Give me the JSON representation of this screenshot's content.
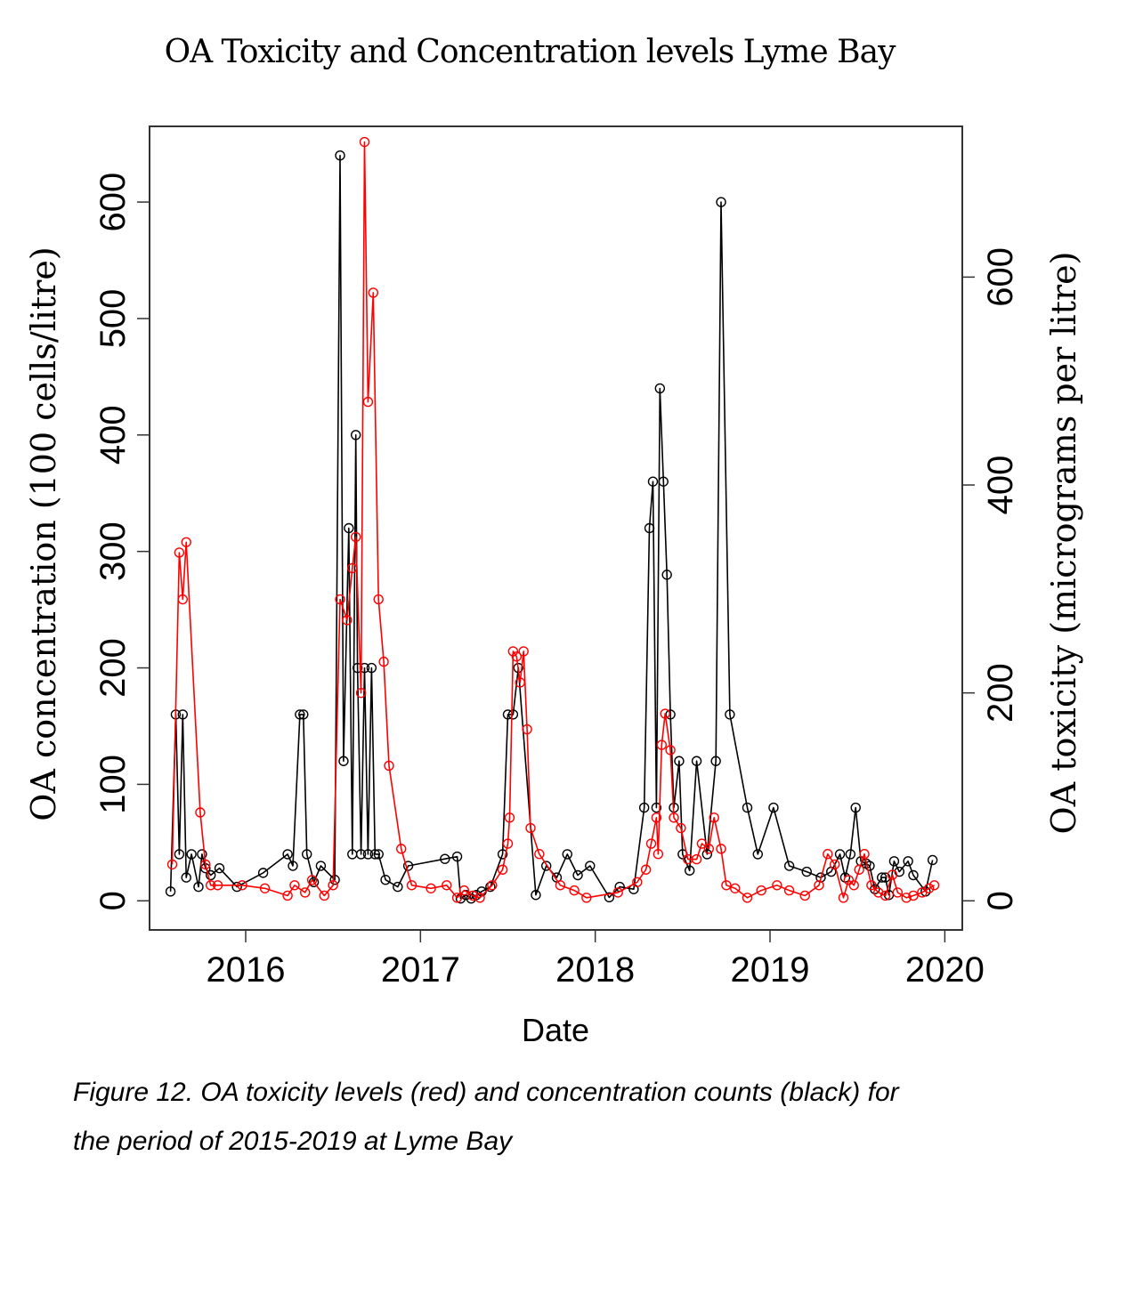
{
  "figure": {
    "title": "OA Toxicity and Concentration levels Lyme Bay",
    "caption_line1": "Figure 12. OA toxicity levels (red) and concentration counts (black) for",
    "caption_line2": "the period of 2015-2019 at Lyme Bay"
  },
  "chart_data": {
    "type": "line",
    "title": "OA Toxicity and Concentration levels Lyme Bay",
    "xlabel": "Date",
    "ylabel_left": "OA concentration (100 cells/litre)",
    "ylabel_right": "OA toxicity (micrograms per litre)",
    "xlim": [
      2015.45,
      2020.1
    ],
    "ylim_left": [
      -25,
      665
    ],
    "ylim_right": [
      -28,
      745
    ],
    "x_ticks": [
      2016,
      2017,
      2018,
      2019,
      2020
    ],
    "x_tick_labels": [
      "2016",
      "2017",
      "2018",
      "2019",
      "2020"
    ],
    "y_left_ticks": [
      0,
      100,
      200,
      300,
      400,
      500,
      600
    ],
    "y_left_tick_labels": [
      "0",
      "100",
      "200",
      "300",
      "400",
      "500",
      "600"
    ],
    "y_right_ticks": [
      0,
      200,
      400,
      600
    ],
    "y_right_tick_labels": [
      "0",
      "200",
      "400",
      "600"
    ],
    "grid": false,
    "legend": "none",
    "series": [
      {
        "name": "OA concentration counts",
        "axis": "left",
        "color": "#000000",
        "marker": "open-circle",
        "x": [
          2015.57,
          2015.6,
          2015.62,
          2015.64,
          2015.66,
          2015.69,
          2015.73,
          2015.75,
          2015.77,
          2015.8,
          2015.85,
          2015.95,
          2016.1,
          2016.24,
          2016.27,
          2016.31,
          2016.33,
          2016.35,
          2016.39,
          2016.43,
          2016.51,
          2016.54,
          2016.56,
          2016.59,
          2016.61,
          2016.63,
          2016.64,
          2016.66,
          2016.68,
          2016.7,
          2016.72,
          2016.74,
          2016.76,
          2016.8,
          2016.87,
          2016.93,
          2017.14,
          2017.21,
          2017.23,
          2017.26,
          2017.29,
          2017.32,
          2017.35,
          2017.4,
          2017.47,
          2017.5,
          2017.53,
          2017.56,
          2017.66,
          2017.72,
          2017.78,
          2017.84,
          2017.9,
          2017.97,
          2018.08,
          2018.14,
          2018.22,
          2018.28,
          2018.31,
          2018.33,
          2018.35,
          2018.37,
          2018.39,
          2018.41,
          2018.43,
          2018.45,
          2018.48,
          2018.5,
          2018.54,
          2018.58,
          2018.64,
          2018.69,
          2018.72,
          2018.77,
          2018.87,
          2018.93,
          2019.02,
          2019.11,
          2019.21,
          2019.29,
          2019.35,
          2019.4,
          2019.43,
          2019.46,
          2019.49,
          2019.52,
          2019.55,
          2019.57,
          2019.6,
          2019.64,
          2019.66,
          2019.68,
          2019.71,
          2019.74,
          2019.79,
          2019.82,
          2019.89,
          2019.93
        ],
        "y": [
          8,
          160,
          40,
          160,
          20,
          40,
          12,
          40,
          28,
          22,
          28,
          12,
          24,
          40,
          30,
          160,
          160,
          40,
          16,
          30,
          18,
          640,
          120,
          320,
          40,
          400,
          200,
          40,
          200,
          40,
          200,
          40,
          40,
          18,
          12,
          30,
          36,
          38,
          2,
          5,
          2,
          5,
          8,
          12,
          40,
          160,
          160,
          200,
          5,
          30,
          20,
          40,
          22,
          30,
          3,
          12,
          10,
          80,
          320,
          360,
          80,
          440,
          360,
          280,
          160,
          80,
          120,
          40,
          26,
          120,
          40,
          120,
          600,
          160,
          80,
          40,
          80,
          30,
          25,
          20,
          25,
          40,
          20,
          40,
          80,
          34,
          32,
          30,
          10,
          20,
          20,
          5,
          34,
          25,
          34,
          22,
          8,
          35
        ],
        "values_note": "read from left axis (100 cells/litre)"
      },
      {
        "name": "OA toxicity levels",
        "axis": "right",
        "color": "#ff0000",
        "marker": "open-circle",
        "x": [
          2015.58,
          2015.62,
          2015.64,
          2015.66,
          2015.74,
          2015.77,
          2015.8,
          2015.84,
          2015.98,
          2016.11,
          2016.24,
          2016.28,
          2016.34,
          2016.38,
          2016.45,
          2016.5,
          2016.54,
          2016.58,
          2016.61,
          2016.63,
          2016.66,
          2016.68,
          2016.7,
          2016.73,
          2016.76,
          2016.79,
          2016.82,
          2016.89,
          2016.95,
          2017.06,
          2017.15,
          2017.21,
          2017.25,
          2017.3,
          2017.34,
          2017.41,
          2017.47,
          2017.5,
          2017.51,
          2017.53,
          2017.55,
          2017.57,
          2017.59,
          2017.61,
          2017.63,
          2017.68,
          2017.8,
          2017.88,
          2017.95,
          2018.13,
          2018.24,
          2018.29,
          2018.32,
          2018.35,
          2018.36,
          2018.38,
          2018.4,
          2018.43,
          2018.45,
          2018.49,
          2018.53,
          2018.58,
          2018.61,
          2018.65,
          2018.68,
          2018.72,
          2018.75,
          2018.8,
          2018.87,
          2018.95,
          2019.04,
          2019.11,
          2019.2,
          2019.28,
          2019.33,
          2019.37,
          2019.42,
          2019.45,
          2019.48,
          2019.51,
          2019.54,
          2019.58,
          2019.62,
          2019.66,
          2019.7,
          2019.73,
          2019.78,
          2019.82,
          2019.87,
          2019.91,
          2019.94
        ],
        "y": [
          35,
          335,
          290,
          345,
          85,
          35,
          15,
          15,
          15,
          12,
          5,
          15,
          8,
          20,
          5,
          15,
          290,
          270,
          320,
          350,
          200,
          730,
          480,
          585,
          290,
          230,
          130,
          50,
          15,
          12,
          15,
          3,
          10,
          5,
          3,
          15,
          30,
          55,
          80,
          240,
          235,
          210,
          240,
          165,
          70,
          45,
          15,
          10,
          3,
          8,
          18,
          30,
          55,
          80,
          45,
          150,
          180,
          145,
          80,
          70,
          40,
          40,
          55,
          50,
          80,
          50,
          15,
          12,
          3,
          10,
          15,
          10,
          5,
          15,
          45,
          35,
          3,
          20,
          15,
          30,
          45,
          15,
          8,
          5,
          25,
          8,
          3,
          5,
          8,
          12,
          15
        ],
        "values_note": "read from right axis (micrograms per litre)"
      }
    ]
  }
}
